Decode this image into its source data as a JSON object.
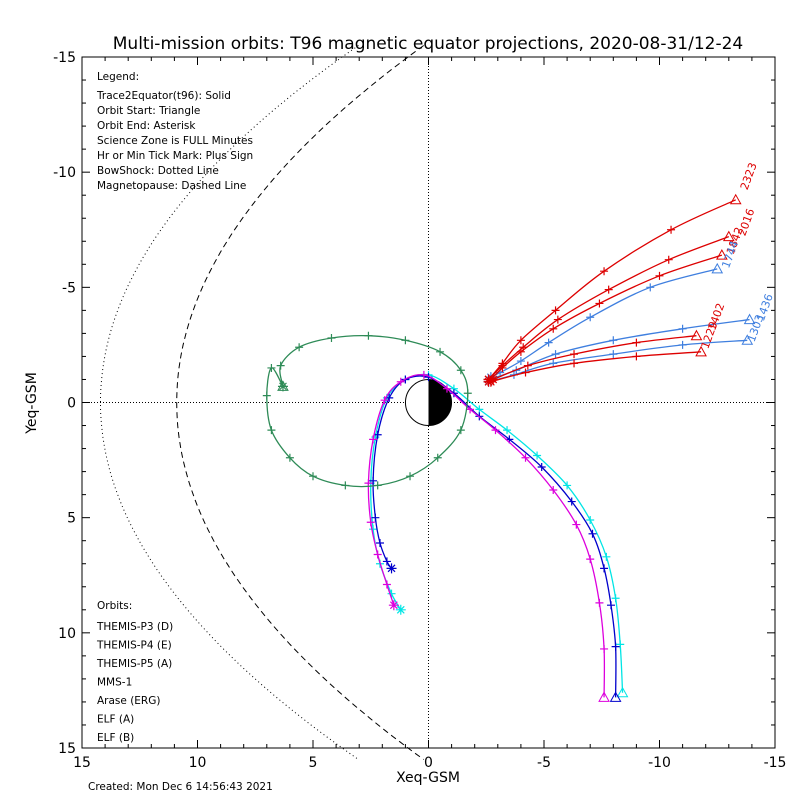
{
  "chart_data": {
    "type": "line",
    "title": "Multi-mission orbits: T96 magnetic equator projections, 2020-08-31/12-24",
    "xlabel": "Xeq-GSM",
    "ylabel": "Yeq-GSM",
    "xlim": [
      15,
      -15
    ],
    "ylim": [
      -15,
      15
    ],
    "x_ticks": [
      "15",
      "10",
      "5",
      "0",
      "-5",
      "-10",
      "-15"
    ],
    "y_ticks": [
      "-15",
      "-10",
      "-5",
      "0",
      "5",
      "10",
      "15"
    ],
    "created": "Created: Mon Dec  6 14:56:43 2021",
    "legend_title": "Legend:",
    "legend_lines": [
      "Trace2Equator(t96): Solid",
      "Orbit Start: Triangle",
      "Orbit End: Asterisk",
      "Science Zone is FULL Minutes",
      "Hr or Min Tick Mark: Plus Sign",
      "BowShock: Dotted Line",
      "Magnetopause: Dashed Line"
    ],
    "orbits_title": "Orbits:",
    "series": [
      {
        "name": "THEMIS-P3 (D)",
        "color": "#00e5e5",
        "x": [
          -8.4,
          -8.3,
          -8.1,
          -7.7,
          -7.0,
          -6.0,
          -4.7,
          -3.4,
          -2.2,
          -1.1,
          0.0,
          1.0,
          1.8,
          2.3,
          2.5,
          2.4,
          2.1,
          1.6,
          1.2
        ],
        "y": [
          12.6,
          10.5,
          8.5,
          6.7,
          5.1,
          3.6,
          2.3,
          1.2,
          0.3,
          -0.6,
          -1.2,
          -1.0,
          -0.2,
          1.5,
          3.5,
          5.5,
          7.0,
          8.3,
          9.0
        ]
      },
      {
        "name": "THEMIS-P4 (E)",
        "color": "#0000cc",
        "x": [
          -8.1,
          -8.1,
          -7.9,
          -7.6,
          -7.1,
          -6.2,
          -4.9,
          -3.5,
          -2.2,
          -1.1,
          0.0,
          1.0,
          1.7,
          2.2,
          2.4,
          2.3,
          2.1,
          1.8,
          1.6
        ],
        "y": [
          12.8,
          10.6,
          8.8,
          7.2,
          5.7,
          4.3,
          2.8,
          1.6,
          0.6,
          -0.4,
          -1.1,
          -1.0,
          -0.2,
          1.4,
          3.4,
          5.0,
          6.1,
          6.9,
          7.2
        ]
      },
      {
        "name": "THEMIS-P5 (A)",
        "color": "#dd00dd",
        "x": [
          -7.6,
          -7.6,
          -7.4,
          -7.0,
          -6.4,
          -5.4,
          -4.2,
          -2.9,
          -1.8,
          -0.8,
          0.2,
          1.2,
          1.9,
          2.4,
          2.6,
          2.5,
          2.2,
          1.8,
          1.5
        ],
        "y": [
          12.8,
          10.7,
          8.7,
          6.8,
          5.3,
          3.8,
          2.4,
          1.2,
          0.3,
          -0.6,
          -1.2,
          -0.9,
          -0.1,
          1.6,
          3.5,
          5.2,
          6.6,
          7.9,
          8.8
        ]
      },
      {
        "name": "MMS-1",
        "color": "#000000",
        "x": [],
        "y": []
      },
      {
        "name": "Arase (ERG)",
        "color": "#2e8b57",
        "x": [
          6.3,
          6.8,
          7.0,
          6.8,
          6.0,
          5.0,
          3.6,
          2.2,
          0.8,
          -0.4,
          -1.4,
          -1.7,
          -1.4,
          -0.5,
          1.0,
          2.6,
          4.2,
          5.6,
          6.4,
          6.3
        ],
        "y": [
          -0.7,
          -1.5,
          -0.3,
          1.2,
          2.4,
          3.2,
          3.6,
          3.6,
          3.2,
          2.4,
          1.2,
          -0.4,
          -1.4,
          -2.2,
          -2.7,
          -2.9,
          -2.8,
          -2.4,
          -1.6,
          -0.7
        ]
      },
      {
        "name": "ELF (A)",
        "color": "#3f7fdf",
        "x": [
          -12.5,
          -9.6,
          -7.0,
          -5.2,
          -4.0,
          -3.1,
          -2.7
        ],
        "y": [
          -5.8,
          -5.0,
          -3.7,
          -2.6,
          -1.8,
          -1.3,
          -1.1
        ]
      },
      {
        "name": "ELF (A)",
        "color": "#3f7fdf",
        "x": [
          -13.9,
          -11.0,
          -8.0,
          -5.5,
          -3.8,
          -2.6
        ],
        "y": [
          -3.6,
          -3.2,
          -2.7,
          -2.1,
          -1.4,
          -1.0
        ]
      },
      {
        "name": "ELF (A)",
        "color": "#3f7fdf",
        "x": [
          -13.8,
          -11.0,
          -8.0,
          -5.4,
          -3.7,
          -2.6
        ],
        "y": [
          -2.7,
          -2.5,
          -2.1,
          -1.7,
          -1.2,
          -0.9
        ]
      },
      {
        "name": "ELF (B)",
        "color": "#dd0000",
        "x": [
          -13.3,
          -10.5,
          -7.6,
          -5.5,
          -4.0,
          -3.2,
          -2.6
        ],
        "y": [
          -8.8,
          -7.5,
          -5.7,
          -4.0,
          -2.7,
          -1.7,
          -1.0
        ]
      },
      {
        "name": "ELF (B)",
        "color": "#dd0000",
        "x": [
          -13.0,
          -10.4,
          -7.8,
          -5.6,
          -4.1,
          -3.2,
          -2.6
        ],
        "y": [
          -7.2,
          -6.2,
          -4.9,
          -3.6,
          -2.4,
          -1.6,
          -1.0
        ]
      },
      {
        "name": "ELF (B)",
        "color": "#dd0000",
        "x": [
          -12.7,
          -10.0,
          -7.4,
          -5.4,
          -4.0,
          -3.2,
          -2.6
        ],
        "y": [
          -6.4,
          -5.5,
          -4.3,
          -3.2,
          -2.2,
          -1.5,
          -0.9
        ]
      },
      {
        "name": "ELF (B)",
        "color": "#dd0000",
        "x": [
          -11.8,
          -9.0,
          -6.3,
          -4.2,
          -2.7
        ],
        "y": [
          -2.2,
          -2.0,
          -1.7,
          -1.3,
          -0.9
        ]
      },
      {
        "name": "ELF (B)",
        "color": "#dd0000",
        "x": [
          -11.6,
          -9.0,
          -6.3,
          -4.3,
          -2.8
        ],
        "y": [
          -2.9,
          -2.6,
          -2.1,
          -1.6,
          -1.0
        ]
      }
    ],
    "orbit_labels": [
      {
        "text": "2323",
        "color": "#dd0000",
        "x": -13.8,
        "y": -9.2
      },
      {
        "text": "2016",
        "color": "#dd0000",
        "x": -13.7,
        "y": -7.2
      },
      {
        "text": "1842",
        "color": "#dd0000",
        "x": -13.2,
        "y": -6.4
      },
      {
        "text": "1744",
        "color": "#3f7fdf",
        "x": -13.0,
        "y": -5.8
      },
      {
        "text": "1436",
        "color": "#3f7fdf",
        "x": -14.5,
        "y": -3.5
      },
      {
        "text": "1303",
        "color": "#3f7fdf",
        "x": -14.1,
        "y": -2.6
      },
      {
        "text": "1402",
        "color": "#dd0000",
        "x": -12.4,
        "y": -3.1
      },
      {
        "text": "1229",
        "color": "#dd0000",
        "x": -12.1,
        "y": -2.3
      }
    ],
    "bow_shock": "dotted",
    "magnetopause": "dashed"
  }
}
